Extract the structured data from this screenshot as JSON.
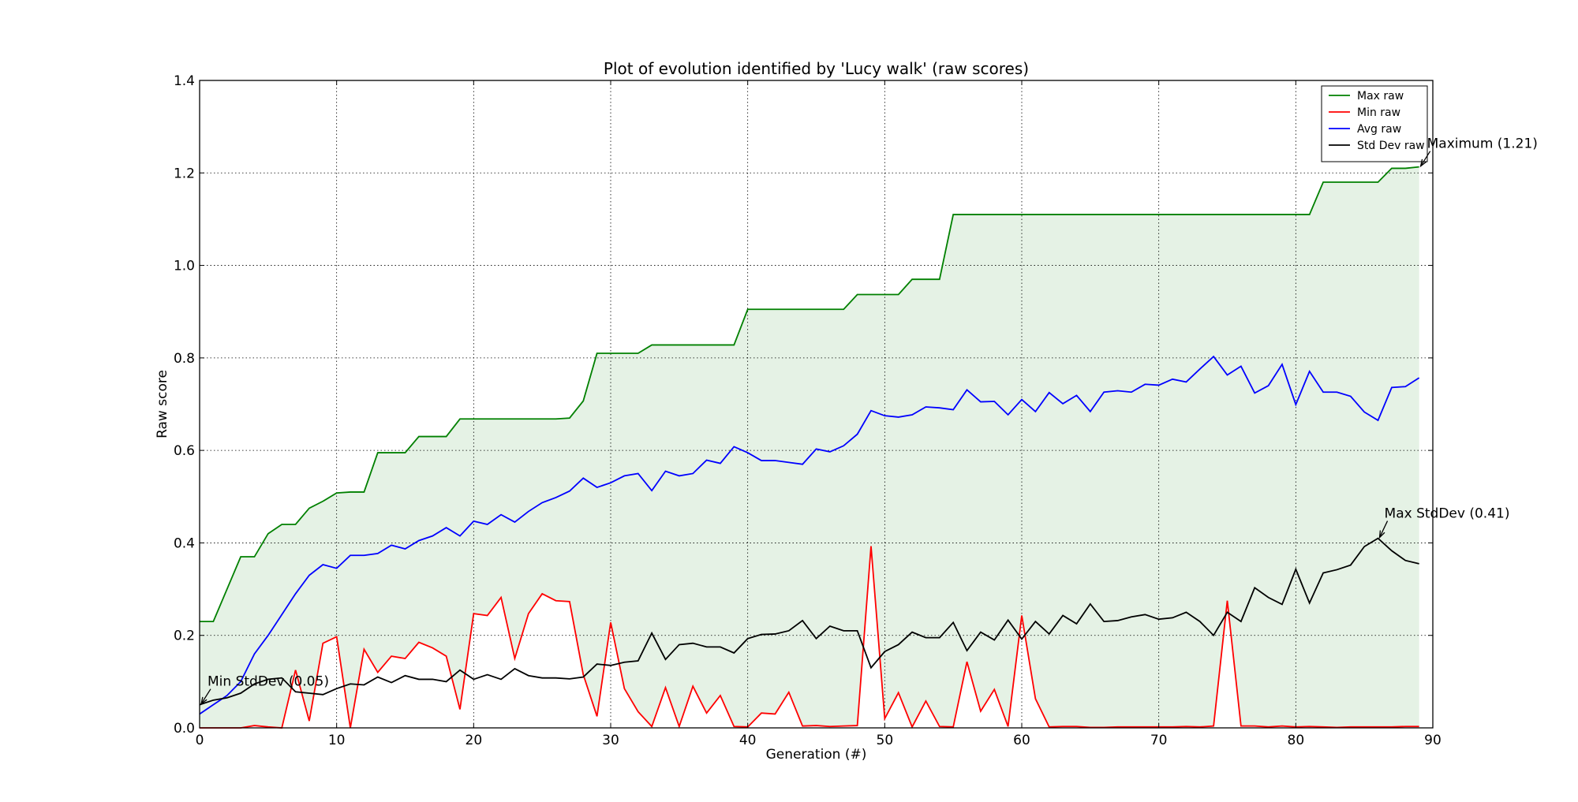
{
  "chart_data": {
    "type": "line",
    "title": "Plot of evolution identified by 'Lucy walk' (raw scores)",
    "xlabel": "Generation (#)",
    "ylabel": "Raw score",
    "xlim": [
      0,
      90
    ],
    "ylim": [
      0.0,
      1.4
    ],
    "xticks": [
      0,
      10,
      20,
      30,
      40,
      50,
      60,
      70,
      80,
      90
    ],
    "yticks": [
      0.0,
      0.2,
      0.4,
      0.6,
      0.8,
      1.0,
      1.2,
      1.4
    ],
    "xtick_labels": [
      "0",
      "10",
      "20",
      "30",
      "40",
      "50",
      "60",
      "70",
      "80",
      "90"
    ],
    "ytick_labels": [
      "0.0",
      "0.2",
      "0.4",
      "0.6",
      "0.8",
      "1.0",
      "1.2",
      "1.4"
    ],
    "grid": true,
    "legend_position": "top-right",
    "fill_between": {
      "upper": "Max raw",
      "lower": "Min raw",
      "color": "#e5f2e5"
    },
    "series": [
      {
        "name": "Max raw",
        "color": "#008000",
        "values": [
          0.23,
          0.23,
          0.3,
          0.37,
          0.37,
          0.42,
          0.44,
          0.44,
          0.475,
          0.49,
          0.508,
          0.51,
          0.51,
          0.595,
          0.595,
          0.595,
          0.63,
          0.63,
          0.63,
          0.668,
          0.668,
          0.668,
          0.668,
          0.668,
          0.668,
          0.668,
          0.668,
          0.67,
          0.707,
          0.81,
          0.81,
          0.81,
          0.81,
          0.828,
          0.828,
          0.828,
          0.828,
          0.828,
          0.828,
          0.828,
          0.905,
          0.905,
          0.905,
          0.905,
          0.905,
          0.905,
          0.905,
          0.905,
          0.937,
          0.937,
          0.937,
          0.937,
          0.97,
          0.97,
          0.97,
          1.11,
          1.11,
          1.11,
          1.11,
          1.11,
          1.11,
          1.11,
          1.11,
          1.11,
          1.11,
          1.11,
          1.11,
          1.11,
          1.11,
          1.11,
          1.11,
          1.11,
          1.11,
          1.11,
          1.11,
          1.11,
          1.11,
          1.11,
          1.11,
          1.11,
          1.11,
          1.11,
          1.18,
          1.18,
          1.18,
          1.18,
          1.18,
          1.21,
          1.21,
          1.213
        ]
      },
      {
        "name": "Min raw",
        "color": "#ff0000",
        "values": [
          0.0,
          0.0,
          0.0,
          0.0,
          0.005,
          0.002,
          0.0,
          0.125,
          0.015,
          0.183,
          0.197,
          0.0,
          0.17,
          0.12,
          0.155,
          0.15,
          0.185,
          0.173,
          0.155,
          0.04,
          0.247,
          0.243,
          0.282,
          0.15,
          0.247,
          0.29,
          0.275,
          0.273,
          0.115,
          0.025,
          0.228,
          0.085,
          0.035,
          0.003,
          0.087,
          0.003,
          0.09,
          0.032,
          0.07,
          0.003,
          0.002,
          0.032,
          0.03,
          0.077,
          0.004,
          0.005,
          0.003,
          0.004,
          0.005,
          0.393,
          0.02,
          0.076,
          0.002,
          0.058,
          0.003,
          0.002,
          0.143,
          0.036,
          0.083,
          0.003,
          0.243,
          0.063,
          0.002,
          0.003,
          0.003,
          0.001,
          0.001,
          0.002,
          0.002,
          0.002,
          0.002,
          0.002,
          0.003,
          0.002,
          0.004,
          0.275,
          0.004,
          0.004,
          0.002,
          0.004,
          0.002,
          0.003,
          0.002,
          0.001,
          0.002,
          0.002,
          0.002,
          0.002,
          0.003,
          0.003
        ]
      },
      {
        "name": "Avg raw",
        "color": "#0000ff",
        "values": [
          0.03,
          0.05,
          0.07,
          0.1,
          0.16,
          0.2,
          0.245,
          0.29,
          0.33,
          0.353,
          0.345,
          0.373,
          0.373,
          0.377,
          0.395,
          0.387,
          0.405,
          0.415,
          0.433,
          0.415,
          0.447,
          0.44,
          0.461,
          0.445,
          0.468,
          0.487,
          0.498,
          0.512,
          0.54,
          0.52,
          0.53,
          0.545,
          0.55,
          0.513,
          0.555,
          0.545,
          0.55,
          0.579,
          0.572,
          0.608,
          0.595,
          0.578,
          0.578,
          0.574,
          0.57,
          0.603,
          0.597,
          0.61,
          0.635,
          0.686,
          0.675,
          0.672,
          0.677,
          0.694,
          0.692,
          0.688,
          0.731,
          0.705,
          0.706,
          0.677,
          0.71,
          0.684,
          0.725,
          0.701,
          0.719,
          0.684,
          0.726,
          0.729,
          0.726,
          0.743,
          0.741,
          0.754,
          0.748,
          0.776,
          0.803,
          0.763,
          0.782,
          0.724,
          0.74,
          0.786,
          0.699,
          0.771,
          0.726,
          0.726,
          0.717,
          0.683,
          0.665,
          0.736,
          0.738,
          0.757
        ]
      },
      {
        "name": "Std Dev raw",
        "color": "#000000",
        "values": [
          0.05,
          0.06,
          0.065,
          0.075,
          0.095,
          0.105,
          0.108,
          0.078,
          0.075,
          0.072,
          0.085,
          0.095,
          0.093,
          0.11,
          0.098,
          0.113,
          0.105,
          0.105,
          0.1,
          0.125,
          0.105,
          0.115,
          0.105,
          0.128,
          0.113,
          0.108,
          0.108,
          0.106,
          0.11,
          0.138,
          0.135,
          0.142,
          0.145,
          0.205,
          0.148,
          0.18,
          0.183,
          0.175,
          0.175,
          0.162,
          0.193,
          0.202,
          0.203,
          0.21,
          0.232,
          0.193,
          0.22,
          0.21,
          0.21,
          0.13,
          0.165,
          0.18,
          0.207,
          0.195,
          0.195,
          0.228,
          0.167,
          0.207,
          0.19,
          0.233,
          0.192,
          0.23,
          0.203,
          0.243,
          0.225,
          0.268,
          0.23,
          0.232,
          0.24,
          0.245,
          0.235,
          0.238,
          0.25,
          0.23,
          0.2,
          0.25,
          0.23,
          0.303,
          0.282,
          0.267,
          0.343,
          0.27,
          0.335,
          0.342,
          0.352,
          0.392,
          0.41,
          0.383,
          0.362,
          0.355
        ]
      }
    ],
    "annotations": [
      {
        "text": "Maximum (1.21)",
        "x": 89,
        "y": 1.213
      },
      {
        "text": "Max StdDev (0.41)",
        "x": 86,
        "y": 0.41
      },
      {
        "text": "Min StdDev (0.05)",
        "x": 0,
        "y": 0.05
      }
    ]
  }
}
